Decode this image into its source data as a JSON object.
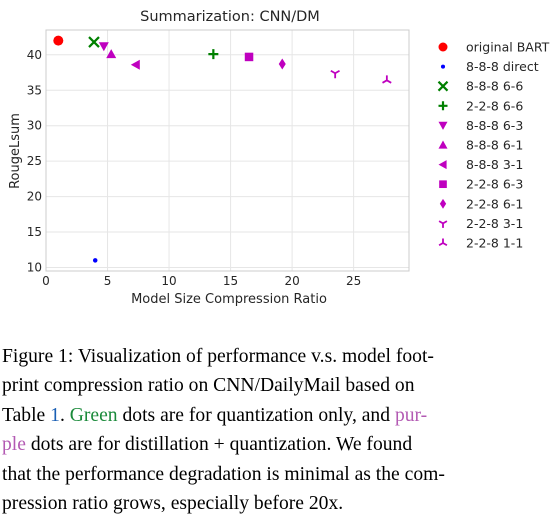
{
  "chart_data": {
    "type": "scatter",
    "title": "Summarization: CNN/DM",
    "xlabel": "Model Size Compression Ratio",
    "ylabel": "RougeLsum",
    "xlim": [
      0,
      29.5
    ],
    "ylim": [
      9.5,
      43.5
    ],
    "xticks": [
      0,
      5,
      10,
      15,
      20,
      25
    ],
    "yticks": [
      10,
      15,
      20,
      25,
      30,
      35,
      40
    ],
    "grid": true,
    "legend_position": "right outside",
    "series": [
      {
        "name": "original BART",
        "marker": "circle",
        "color": "#ff0000",
        "x": 1.0,
        "y": 42.0
      },
      {
        "name": "8-8-8 direct",
        "marker": "dot",
        "color": "#0000ff",
        "x": 4.0,
        "y": 11.0
      },
      {
        "name": "8-8-8 6-6",
        "marker": "x",
        "color": "#008000",
        "x": 3.9,
        "y": 41.8
      },
      {
        "name": "2-2-8 6-6",
        "marker": "plus",
        "color": "#008000",
        "x": 13.6,
        "y": 40.1
      },
      {
        "name": "8-8-8 6-3",
        "marker": "triangle-down",
        "color": "#bf00bf",
        "x": 4.7,
        "y": 41.2
      },
      {
        "name": "8-8-8 6-1",
        "marker": "triangle-up",
        "color": "#bf00bf",
        "x": 5.3,
        "y": 40.1
      },
      {
        "name": "8-8-8 3-1",
        "marker": "triangle-left",
        "color": "#bf00bf",
        "x": 7.3,
        "y": 38.6
      },
      {
        "name": "2-2-8 6-3",
        "marker": "square",
        "color": "#bf00bf",
        "x": 16.5,
        "y": 39.7
      },
      {
        "name": "2-2-8 6-1",
        "marker": "diamond",
        "color": "#bf00bf",
        "x": 19.2,
        "y": 38.7
      },
      {
        "name": "2-2-8 3-1",
        "marker": "tri-down",
        "color": "#bf00bf",
        "x": 23.5,
        "y": 37.4
      },
      {
        "name": "2-2-8 1-1",
        "marker": "tri-up",
        "color": "#bf00bf",
        "x": 27.7,
        "y": 36.4
      }
    ]
  },
  "caption": {
    "l1": "Figure 1: Visualization of performance v.s. model foot-",
    "l2": "print compression ratio on CNN/DailyMail based on",
    "l3_a": "Table ",
    "l3_ref": "1",
    "l3_b": ". ",
    "l3_green": "Green",
    "l3_c": " dots are for quantization only, and ",
    "l3_purple": "pur-",
    "l4_purple": "ple",
    "l4_a": " dots are for distillation + quantization. We found",
    "l5": "that the performance degradation is minimal as the com-",
    "l6": "pression ratio grows, especially before 20x.",
    "ref_color": "#1a5fb4"
  }
}
